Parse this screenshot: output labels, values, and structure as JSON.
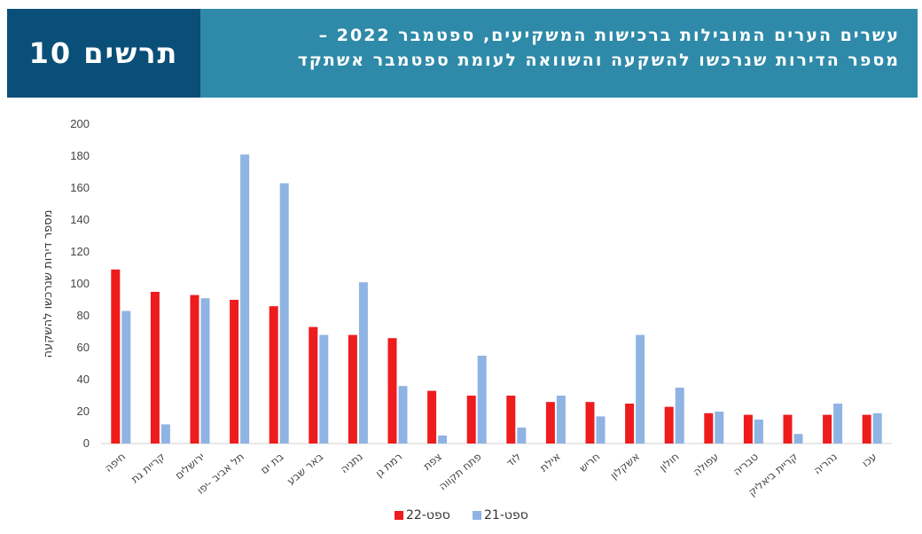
{
  "header": {
    "figure_label": "תרשים 10",
    "title_line1": "עשרים הערים המובילות ברכישות המשקיעים, ספטמבר 2022 –",
    "title_line2": "מספר הדירות שנרכשו להשקעה והשוואה לעומת ספטמבר אשתקד"
  },
  "chart_data": {
    "type": "bar",
    "ylabel": "מספר דירות שנרכשו להשקעה",
    "ylim": [
      0,
      200
    ],
    "yticks": [
      0,
      20,
      40,
      60,
      80,
      100,
      120,
      140,
      160,
      180,
      200
    ],
    "categories": [
      "חיפה",
      "קריית גת",
      "ירושלים",
      "תל אביב -יפו",
      "בת ים",
      "באר שבע",
      "נתניה",
      "רמת גן",
      "צפת",
      "פתח תקווה",
      "לוד",
      "אילת",
      "חריש",
      "אשקלון",
      "חולון",
      "עפולה",
      "טבריה",
      "קריית ביאליק",
      "נהריה",
      "עכו"
    ],
    "series": [
      {
        "name": "ספט-22",
        "color": "#ee1c1c",
        "values": [
          109,
          95,
          93,
          90,
          86,
          73,
          68,
          66,
          33,
          30,
          30,
          26,
          26,
          25,
          23,
          19,
          18,
          18,
          18,
          18
        ]
      },
      {
        "name": "ספט-21",
        "color": "#8fb4e3",
        "values": [
          83,
          12,
          91,
          181,
          163,
          68,
          101,
          36,
          5,
          55,
          10,
          30,
          17,
          68,
          35,
          20,
          15,
          6,
          25,
          19
        ]
      }
    ]
  }
}
